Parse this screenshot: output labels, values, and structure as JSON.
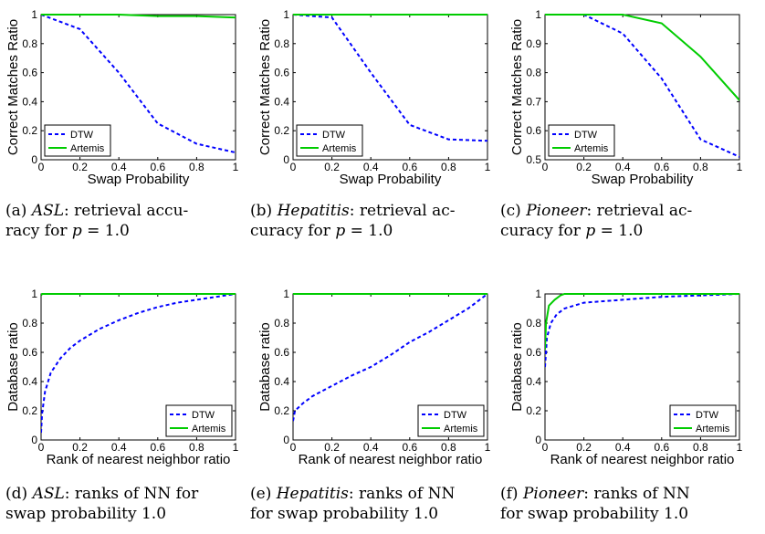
{
  "chart_data": [
    {
      "type": "line",
      "ylabel": "Correct Matches Ratio",
      "xlabel": "Swap Probability",
      "xlim": [
        0,
        1
      ],
      "ylim": [
        0,
        1
      ],
      "xticks": [
        "0",
        "0.2",
        "0.4",
        "0.6",
        "0.8",
        "1"
      ],
      "yticks": [
        "0",
        "0.2",
        "0.4",
        "0.6",
        "0.8",
        "1"
      ],
      "legend_position": "bottom-left",
      "grid": false,
      "series": [
        {
          "name": "DTW",
          "color": "#0000ff",
          "style": "dashed",
          "x": [
            0,
            0.2,
            0.4,
            0.6,
            0.8,
            1
          ],
          "y": [
            1.0,
            0.9,
            0.6,
            0.25,
            0.11,
            0.05
          ]
        },
        {
          "name": "Artemis",
          "color": "#00cc00",
          "style": "solid",
          "x": [
            0,
            0.2,
            0.4,
            0.6,
            0.8,
            1
          ],
          "y": [
            1.0,
            1.0,
            1.0,
            0.99,
            0.99,
            0.98
          ]
        }
      ]
    },
    {
      "type": "line",
      "ylabel": "Correct Matches Ratio",
      "xlabel": "Swap Probability",
      "xlim": [
        0,
        1
      ],
      "ylim": [
        0,
        1
      ],
      "xticks": [
        "0",
        "0.2",
        "0.4",
        "0.6",
        "0.8",
        "1"
      ],
      "yticks": [
        "0",
        "0.2",
        "0.4",
        "0.6",
        "0.8",
        "1"
      ],
      "legend_position": "bottom-left",
      "grid": false,
      "series": [
        {
          "name": "DTW",
          "color": "#0000ff",
          "style": "dashed",
          "x": [
            0,
            0.2,
            0.4,
            0.6,
            0.8,
            1
          ],
          "y": [
            1.0,
            0.98,
            0.6,
            0.24,
            0.14,
            0.13
          ]
        },
        {
          "name": "Artemis",
          "color": "#00cc00",
          "style": "solid",
          "x": [
            0,
            0.2,
            0.4,
            0.6,
            0.8,
            1
          ],
          "y": [
            1.0,
            1.0,
            1.0,
            1.0,
            1.0,
            1.0
          ]
        }
      ]
    },
    {
      "type": "line",
      "ylabel": "Correct Matches Ratio",
      "xlabel": "Swap Probability",
      "xlim": [
        0,
        1
      ],
      "ylim": [
        0.5,
        1
      ],
      "xticks": [
        "0",
        "0.2",
        "0.4",
        "0.6",
        "0.8",
        "1"
      ],
      "yticks": [
        "0.5",
        "0.6",
        "0.7",
        "0.8",
        "0.9",
        "1"
      ],
      "legend_position": "bottom-left",
      "grid": false,
      "series": [
        {
          "name": "DTW",
          "color": "#0000ff",
          "style": "dashed",
          "x": [
            0,
            0.2,
            0.4,
            0.6,
            0.8,
            1
          ],
          "y": [
            1.0,
            1.0,
            0.935,
            0.78,
            0.57,
            0.51
          ]
        },
        {
          "name": "Artemis",
          "color": "#00cc00",
          "style": "solid",
          "x": [
            0,
            0.2,
            0.4,
            0.6,
            0.8,
            1
          ],
          "y": [
            1.0,
            1.0,
            1.0,
            0.97,
            0.855,
            0.705
          ]
        }
      ]
    },
    {
      "type": "line",
      "ylabel": "Database ratio",
      "xlabel": "Rank of nearest neighbor ratio",
      "xlim": [
        0,
        1
      ],
      "ylim": [
        0,
        1
      ],
      "xticks": [
        "0",
        "0.2",
        "0.4",
        "0.6",
        "0.8",
        "1"
      ],
      "yticks": [
        "0",
        "0.2",
        "0.4",
        "0.6",
        "0.8",
        "1"
      ],
      "legend_position": "bottom-right",
      "grid": false,
      "series": [
        {
          "name": "DTW",
          "color": "#0000ff",
          "style": "dashed",
          "x": [
            0,
            0.005,
            0.02,
            0.05,
            0.1,
            0.15,
            0.2,
            0.3,
            0.4,
            0.5,
            0.6,
            0.7,
            0.8,
            0.9,
            1.0
          ],
          "y": [
            0.05,
            0.18,
            0.33,
            0.46,
            0.56,
            0.63,
            0.68,
            0.76,
            0.82,
            0.87,
            0.91,
            0.94,
            0.96,
            0.98,
            1.0
          ]
        },
        {
          "name": "Artemis",
          "color": "#00cc00",
          "style": "solid",
          "x": [
            0,
            0.005,
            1.0
          ],
          "y": [
            0.99,
            1.0,
            1.0
          ]
        }
      ]
    },
    {
      "type": "line",
      "ylabel": "Database ratio",
      "xlabel": "Rank of nearest neighbor ratio",
      "xlim": [
        0,
        1
      ],
      "ylim": [
        0,
        1
      ],
      "xticks": [
        "0",
        "0.2",
        "0.4",
        "0.6",
        "0.8",
        "1"
      ],
      "yticks": [
        "0",
        "0.2",
        "0.4",
        "0.6",
        "0.8",
        "1"
      ],
      "legend_position": "bottom-right",
      "grid": false,
      "series": [
        {
          "name": "DTW",
          "color": "#0000ff",
          "style": "dashed",
          "x": [
            0,
            0.01,
            0.05,
            0.1,
            0.2,
            0.3,
            0.4,
            0.5,
            0.6,
            0.7,
            0.8,
            0.9,
            1.0
          ],
          "y": [
            0.13,
            0.2,
            0.25,
            0.3,
            0.37,
            0.44,
            0.5,
            0.58,
            0.67,
            0.74,
            0.82,
            0.9,
            1.0
          ]
        },
        {
          "name": "Artemis",
          "color": "#00cc00",
          "style": "solid",
          "x": [
            0,
            1.0
          ],
          "y": [
            1.0,
            1.0
          ]
        }
      ]
    },
    {
      "type": "line",
      "ylabel": "Database ratio",
      "xlabel": "Rank of nearest neighbor ratio",
      "xlim": [
        0,
        1
      ],
      "ylim": [
        0,
        1
      ],
      "xticks": [
        "0",
        "0.2",
        "0.4",
        "0.6",
        "0.8",
        "1"
      ],
      "yticks": [
        "0",
        "0.2",
        "0.4",
        "0.6",
        "0.8",
        "1"
      ],
      "legend_position": "bottom-right",
      "grid": false,
      "series": [
        {
          "name": "DTW",
          "color": "#0000ff",
          "style": "dashed",
          "x": [
            0,
            0.005,
            0.01,
            0.03,
            0.06,
            0.1,
            0.15,
            0.2,
            0.3,
            0.4,
            0.5,
            0.6,
            0.7,
            0.8,
            0.9,
            1.0
          ],
          "y": [
            0.5,
            0.6,
            0.7,
            0.8,
            0.86,
            0.9,
            0.92,
            0.94,
            0.95,
            0.96,
            0.97,
            0.98,
            0.985,
            0.99,
            0.995,
            1.0
          ]
        },
        {
          "name": "Artemis",
          "color": "#00cc00",
          "style": "solid",
          "x": [
            0,
            0.005,
            0.02,
            0.05,
            0.08,
            0.1,
            1.0
          ],
          "y": [
            0.62,
            0.8,
            0.92,
            0.96,
            0.99,
            1.0,
            1.0
          ]
        }
      ]
    }
  ],
  "captions": [
    {
      "label": "(a)",
      "dataset": "ASL",
      "rest1": ": retrieval accu-",
      "rest2": "racy for ",
      "var": "p",
      "rest3": " = 1.0"
    },
    {
      "label": "(b)",
      "dataset": "Hepatitis",
      "rest1": ": retrieval ac-",
      "rest2": "curacy for ",
      "var": "p",
      "rest3": " = 1.0"
    },
    {
      "label": "(c)",
      "dataset": "Pioneer",
      "rest1": ": retrieval ac-",
      "rest2": "curacy for ",
      "var": "p",
      "rest3": " = 1.0"
    },
    {
      "label": "(d)",
      "dataset": "ASL",
      "rest1": ": ranks of NN for",
      "rest2": "swap probability 1.0",
      "var": "",
      "rest3": ""
    },
    {
      "label": "(e)",
      "dataset": "Hepatitis",
      "rest1": ": ranks of NN",
      "rest2": "for swap probability 1.0",
      "var": "",
      "rest3": ""
    },
    {
      "label": "(f)",
      "dataset": "Pioneer",
      "rest1": ": ranks of NN",
      "rest2": "for swap probability 1.0",
      "var": "",
      "rest3": ""
    }
  ]
}
